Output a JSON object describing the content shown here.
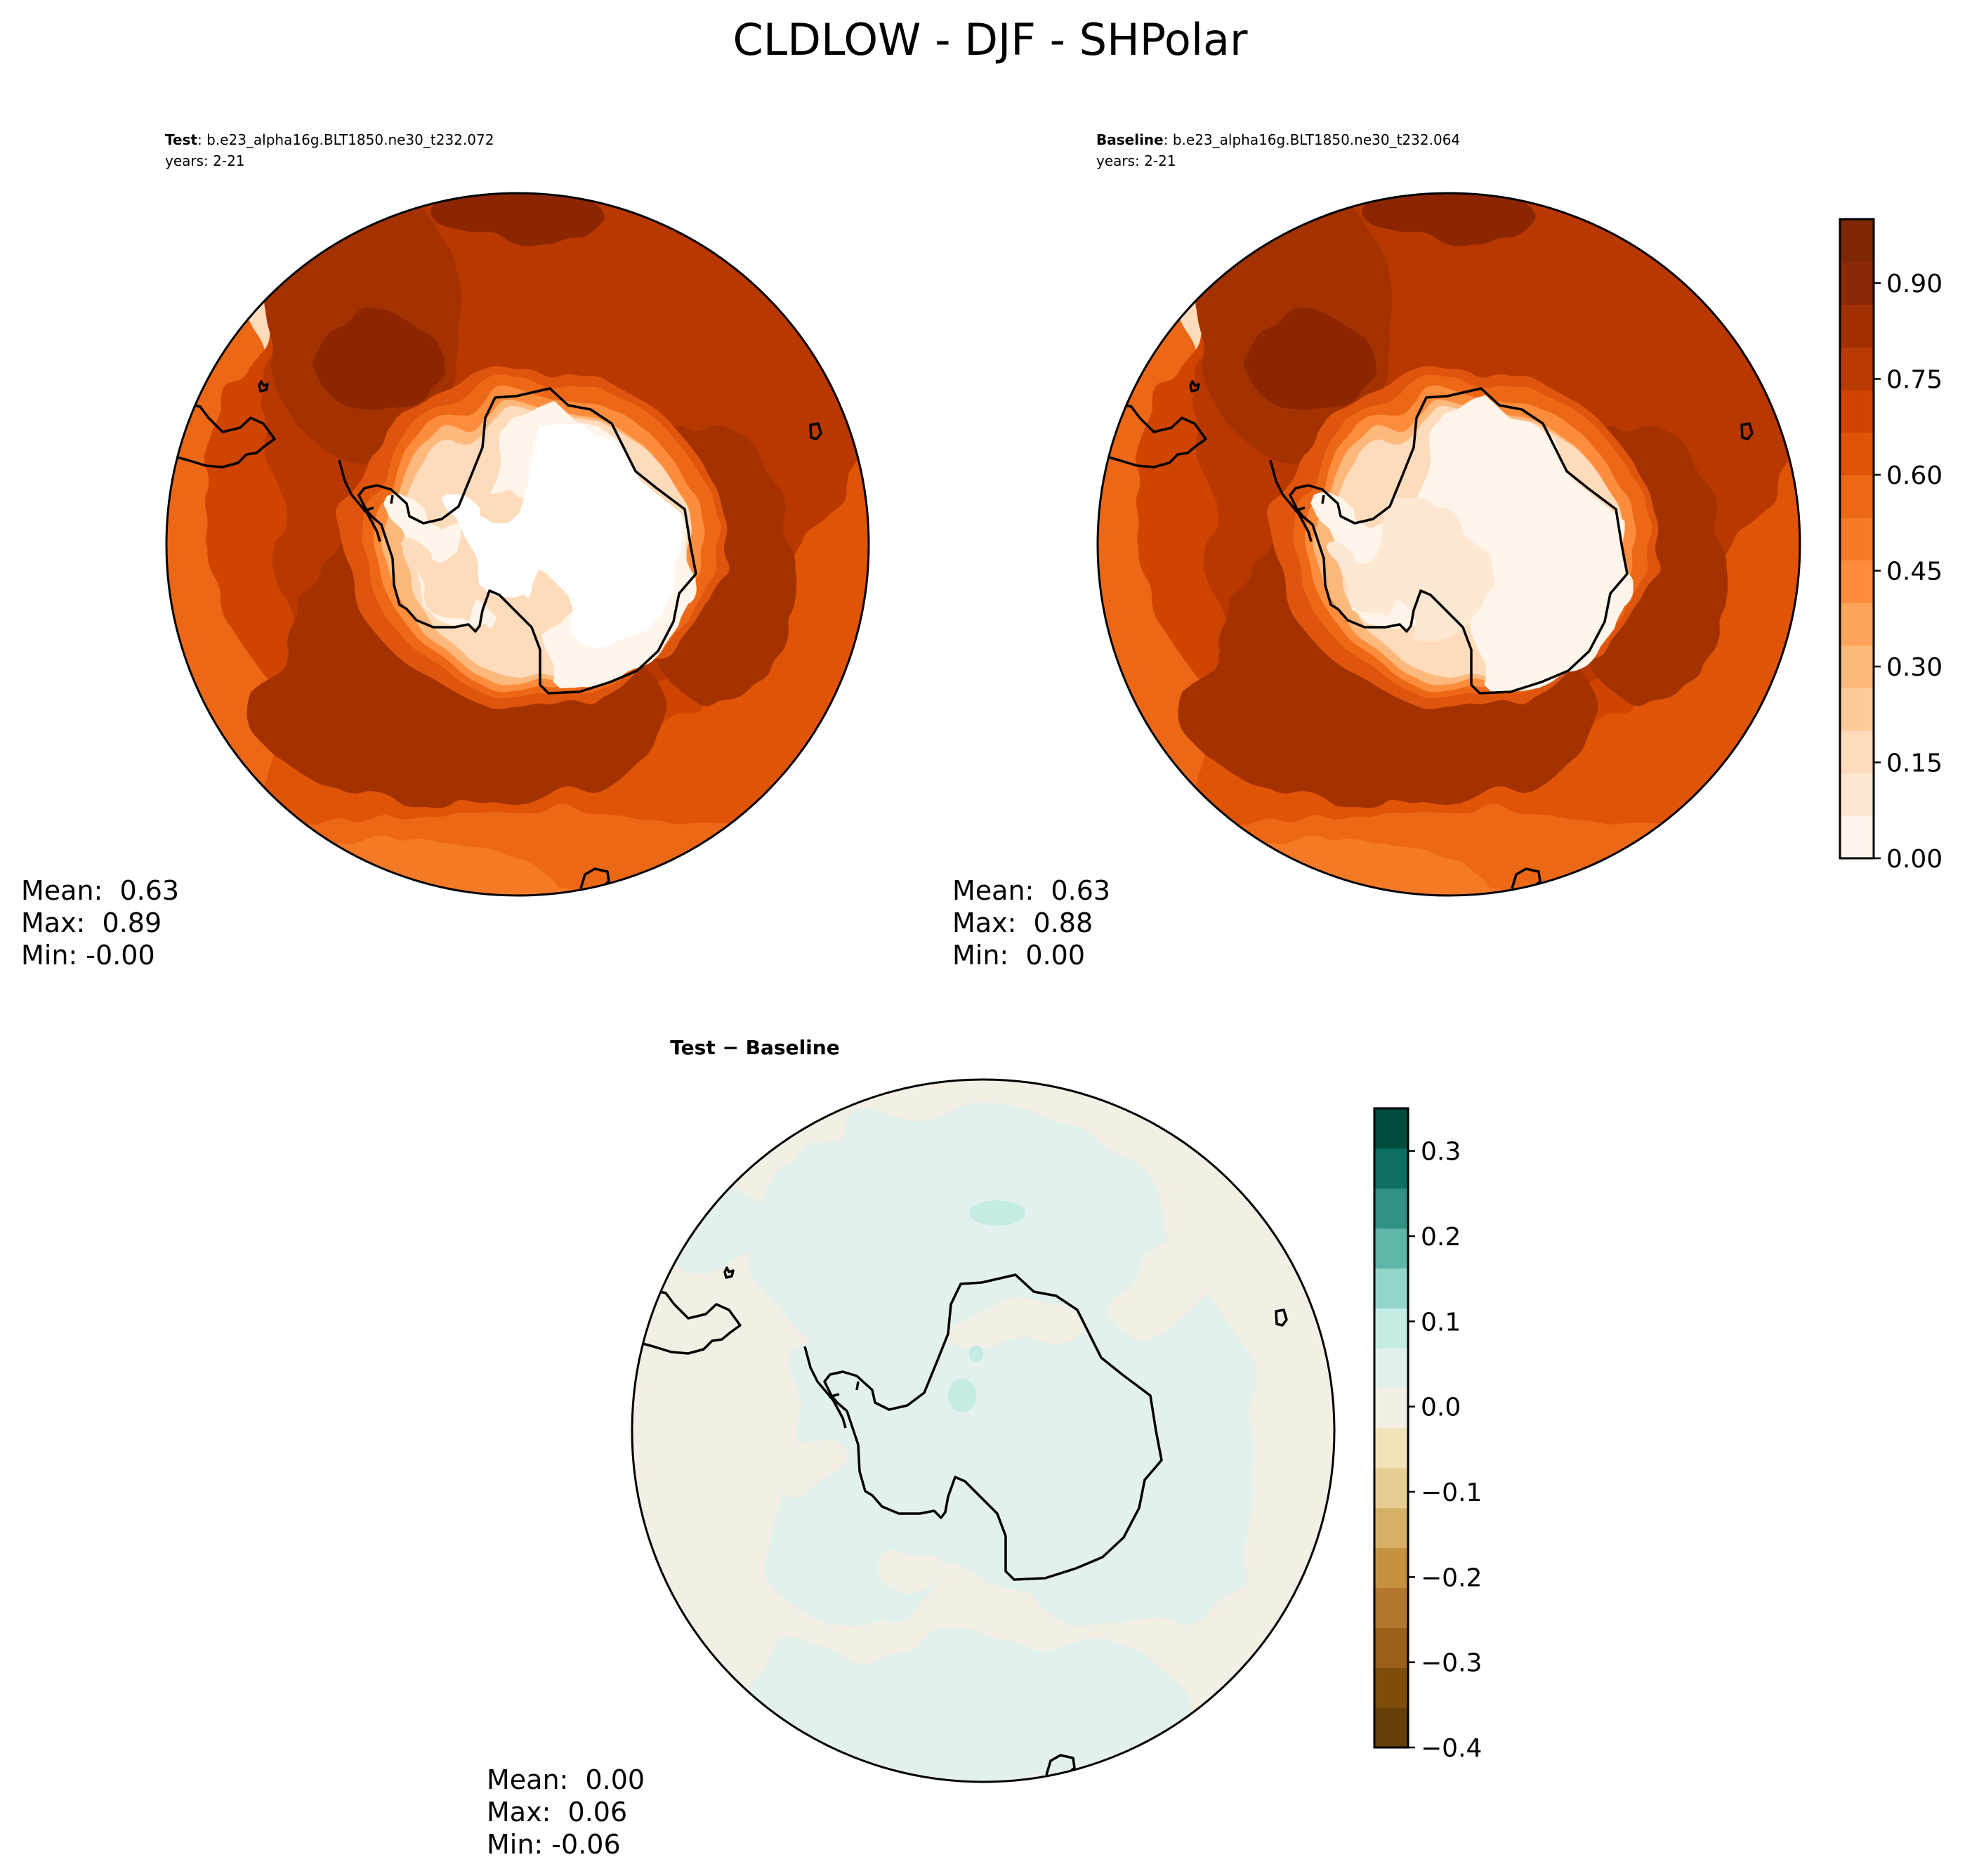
{
  "figure": {
    "title": "CLDLOW - DJF - SHPolar"
  },
  "chart_data": [
    {
      "type": "heatmap",
      "panel": "test",
      "label_bold": "Test",
      "label_rest": ": b.e23_alpha16g.BLT1850.ne30_t232.072",
      "years": "years: 2-21",
      "stats": {
        "mean": "Mean:  0.63",
        "max": "Max:  0.89",
        "min": "Min: -0.00"
      },
      "projection": "south polar stereographic",
      "field_description": "low cloud fraction, near 0 over the Antarctic interior, about 0.85-0.9 in a ring over the Southern Ocean, about 0.6-0.7 farther north"
    },
    {
      "type": "heatmap",
      "panel": "baseline",
      "label_bold": "Baseline",
      "label_rest": ": b.e23_alpha16g.BLT1850.ne30_t232.064",
      "years": "years: 2-21",
      "stats": {
        "mean": "Mean:  0.63",
        "max": "Max:  0.88",
        "min": "Min:  0.00"
      },
      "projection": "south polar stereographic"
    },
    {
      "type": "heatmap",
      "panel": "difference",
      "label": "Test − Baseline",
      "stats": {
        "mean": "Mean:  0.00",
        "max": "Max:  0.06",
        "min": "Min: -0.06"
      },
      "projection": "south polar stereographic",
      "field_description": "small differences, about -0.05 to +0.05, light teal over the continent and the near-pole ring, light beige elsewhere"
    }
  ],
  "colorbars": {
    "main": {
      "range": [
        0.0,
        1.0
      ],
      "tick_values": [
        0.0,
        0.15,
        0.3,
        0.45,
        0.6,
        0.75,
        0.9
      ],
      "tick_labels": [
        "0.00",
        "0.15",
        "0.30",
        "0.45",
        "0.60",
        "0.75",
        "0.90"
      ],
      "colors": [
        "#fff5eb",
        "#fee8d3",
        "#fedcbb",
        "#fdcb9b",
        "#fdb87b",
        "#fda45b",
        "#fd8d3c",
        "#f57a25",
        "#ec6813",
        "#e05407",
        "#cf4401",
        "#b83901",
        "#a33003",
        "#8c2805",
        "#7f2704"
      ]
    },
    "diff": {
      "range": [
        -0.4,
        0.35
      ],
      "tick_values": [
        -0.4,
        -0.3,
        -0.2,
        -0.1,
        0.0,
        0.1,
        0.2,
        0.3
      ],
      "tick_labels": [
        "−0.4",
        "−0.3",
        "−0.2",
        "−0.1",
        "0.0",
        "0.1",
        "0.2",
        "0.3"
      ],
      "colors": [
        "#663e07",
        "#7f4d0a",
        "#9a5f18",
        "#b2772c",
        "#c6913f",
        "#d6b067",
        "#e6cd92",
        "#f1e2b9",
        "#f3efe4",
        "#e3f1ee",
        "#c4ebe4",
        "#93d5c9",
        "#5fb5a8",
        "#2f9083",
        "#0d6e62",
        "#004d40"
      ]
    }
  }
}
